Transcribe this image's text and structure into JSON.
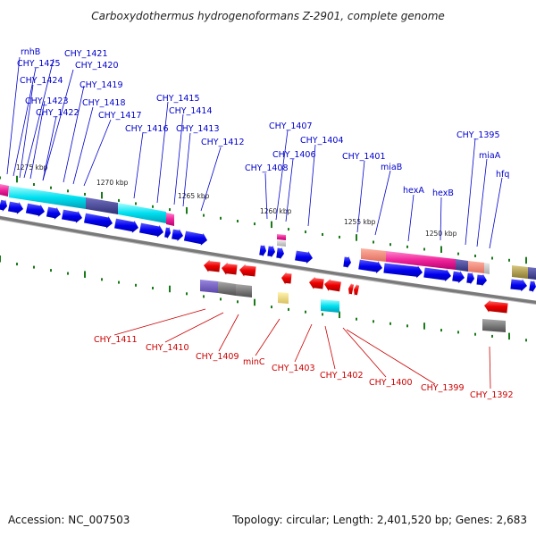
{
  "title": "Carboxydothermus hydrogenoformans Z-2901, complete genome",
  "footer": {
    "accession": "Accession: NC_007503",
    "topology": "Topology: circular; Length: 2,401,520 bp; Genes: 2,683"
  },
  "colors": {
    "forward_label": "#0000cc",
    "reverse_label": "#cc0000",
    "forward_gene": "#0000ee",
    "reverse_gene": "#ee0000",
    "tick": "#1a7a1a",
    "backbone": "#7a7a7a"
  },
  "scale_ticks": [
    "1275 kbp",
    "1270 kbp",
    "1265 kbp",
    "1260 kbp",
    "1255 kbp",
    "1250 kbp"
  ],
  "forward_labels": [
    "rnhB",
    "CHY_1425",
    "CHY_1421",
    "CHY_1420",
    "CHY_1424",
    "CHY_1419",
    "CHY_1423",
    "CHY_1418",
    "CHY_1422",
    "CHY_1417",
    "CHY_1415",
    "CHY_1414",
    "CHY_1416",
    "CHY_1413",
    "CHY_1412",
    "CHY_1407",
    "CHY_1404",
    "CHY_1406",
    "CHY_1408",
    "CHY_1401",
    "miaB",
    "CHY_1395",
    "miaA",
    "hfq",
    "hexA",
    "hexB"
  ],
  "reverse_labels": [
    "CHY_1411",
    "CHY_1410",
    "CHY_1409",
    "minC",
    "CHY_1403",
    "CHY_1402",
    "CHY_1400",
    "CHY_1399",
    "CHY_1392"
  ]
}
